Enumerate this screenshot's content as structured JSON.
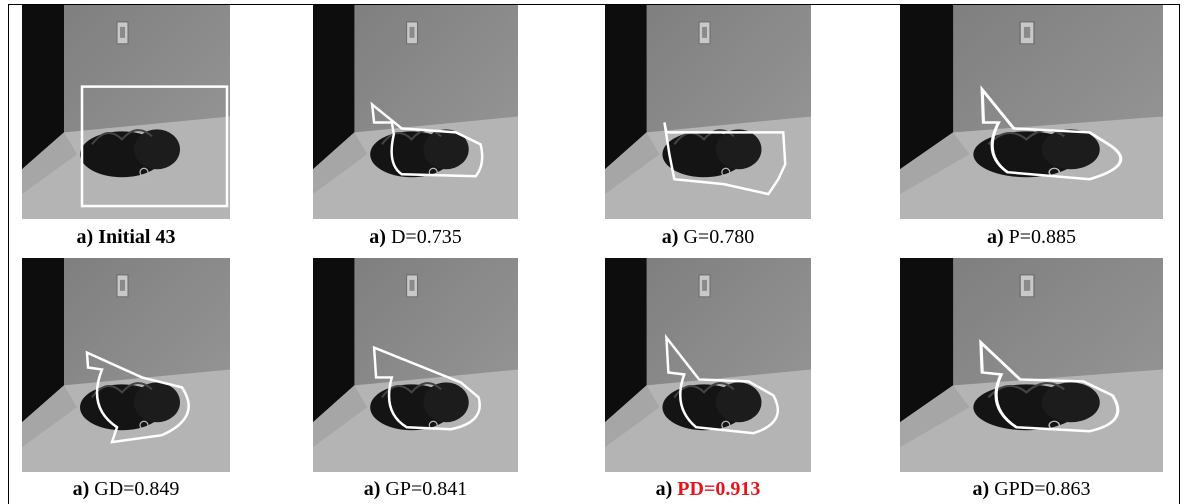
{
  "panels": [
    {
      "prefix": "a)",
      "caption": "Initial 43"
    },
    {
      "prefix": "a)",
      "caption": "D=0.735"
    },
    {
      "prefix": "a)",
      "caption": "G=0.780"
    },
    {
      "prefix": "a)",
      "caption": "P=0.885"
    },
    {
      "prefix": "a)",
      "caption": "GD=0.849"
    },
    {
      "prefix": "a)",
      "caption": "GP=0.841"
    },
    {
      "prefix": "a)",
      "caption": "PD=0.913"
    },
    {
      "prefix": "a)",
      "caption": "GPD=0.863"
    }
  ]
}
